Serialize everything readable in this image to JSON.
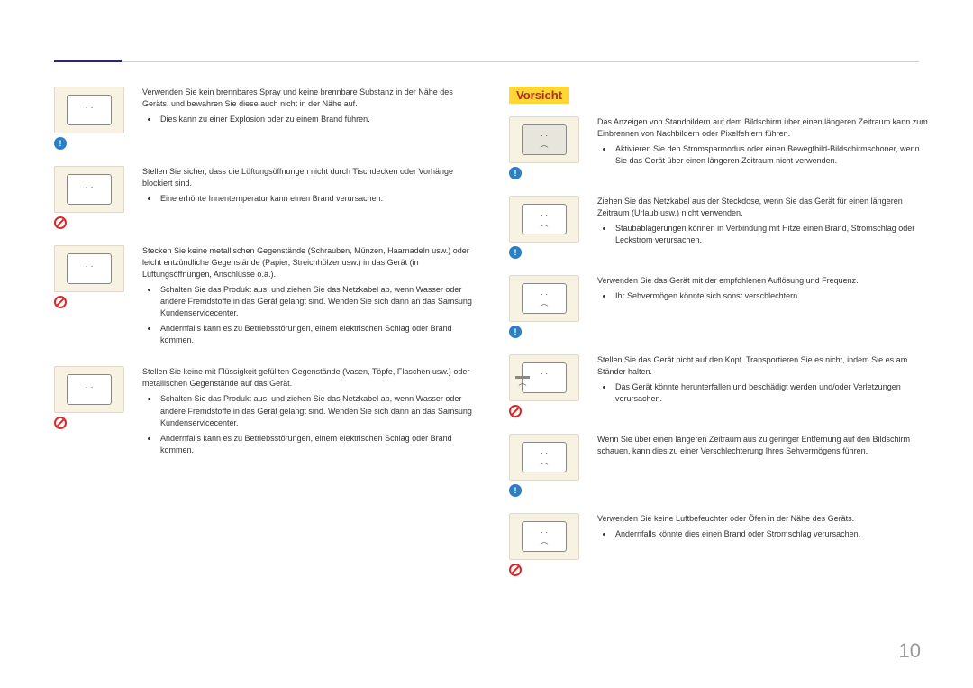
{
  "colors": {
    "header_accent": "#2a2a60",
    "header_rule": "#d0d0d0",
    "icon_bg": "#f8f2e2",
    "icon_border": "#e0d9c8",
    "caution_bg": "#ffd633",
    "caution_fg": "#b02a2a",
    "info_badge": "#2a7fc5",
    "prohibit_badge": "#d92828",
    "text": "#333333",
    "page_num": "#999999"
  },
  "left": {
    "items": [
      {
        "icon": "spray",
        "badge": "info",
        "lead": "Verwenden Sie kein brennbares Spray und keine brennbare Substanz in der Nähe des Geräts, und bewahren Sie diese auch nicht in der Nähe auf.",
        "bullets": [
          "Dies kann zu einer Explosion oder zu einem Brand führen."
        ]
      },
      {
        "icon": "cloth",
        "badge": "no",
        "lead": "Stellen Sie sicher, dass die Lüftungsöffnungen nicht durch Tischdecken oder Vorhänge blockiert sind.",
        "bullets": [
          "Eine erhöhte Innentemperatur kann einen Brand verursachen."
        ]
      },
      {
        "icon": "metal",
        "badge": "no",
        "lead": "Stecken Sie keine metallischen Gegenstände (Schrauben, Münzen, Haarnadeln usw.) oder leicht entzündliche Gegenstände (Papier, Streichhölzer usw.) in das Gerät (in Lüftungsöffnungen, Anschlüsse o.ä.).",
        "bullets": [
          "Schalten Sie das Produkt aus, und ziehen Sie das Netzkabel ab, wenn Wasser oder andere Fremdstoffe in das Gerät gelangt sind. Wenden Sie sich dann an das Samsung Kundenservicecenter.",
          "Andernfalls kann es zu Betriebsstörungen, einem elektrischen Schlag oder Brand kommen."
        ]
      },
      {
        "icon": "vase",
        "badge": "no",
        "lead": "Stellen Sie keine mit Flüssigkeit gefüllten Gegenstände (Vasen, Töpfe, Flaschen usw.) oder metallischen Gegenstände auf das Gerät.",
        "bullets": [
          "Schalten Sie das Produkt aus, und ziehen Sie das Netzkabel ab, wenn Wasser oder andere Fremdstoffe in das Gerät gelangt sind. Wenden Sie sich dann an das Samsung Kundenservicecenter.",
          "Andernfalls kann es zu Betriebsstörungen, einem elektrischen Schlag oder Brand kommen."
        ]
      }
    ]
  },
  "right": {
    "caution": "Vorsicht",
    "items": [
      {
        "icon": "burnin",
        "badge": "info",
        "lead": "Das Anzeigen von Standbildern auf dem Bildschirm über einen längeren Zeitraum kann zum Einbrennen von Nachbildern oder Pixelfehlern führen.",
        "bullets": [
          "Aktivieren Sie den Stromsparmodus oder einen Bewegtbild-Bildschirmschoner, wenn Sie das Gerät über einen längeren Zeitraum nicht verwenden."
        ]
      },
      {
        "icon": "sleep",
        "badge": "info",
        "lead": "Ziehen Sie das Netzkabel aus der Steckdose, wenn Sie das Gerät für einen längeren Zeitraum (Urlaub usw.) nicht verwenden.",
        "bullets": [
          "Staubablagerungen können in Verbindung mit Hitze einen Brand, Stromschlag oder Leckstrom verursachen."
        ]
      },
      {
        "icon": "resolution",
        "badge": "info",
        "lead": "Verwenden Sie das Gerät mit der empfohlenen Auflösung und Frequenz.",
        "bullets": [
          "Ihr Sehvermögen könnte sich sonst verschlechtern."
        ]
      },
      {
        "icon": "upside",
        "badge": "no",
        "lead": "Stellen Sie das Gerät nicht auf den Kopf. Transportieren Sie es nicht, indem Sie es am Ständer halten.",
        "bullets": [
          "Das Gerät könnte herunterfallen und beschädigt werden und/oder Verletzungen verursachen."
        ]
      },
      {
        "icon": "eyes",
        "badge": "info",
        "lead": "Wenn Sie über einen längeren Zeitraum aus zu geringer Entfernung auf den Bildschirm schauen, kann dies zu einer Verschlechterung Ihres Sehvermögens führen.",
        "bullets": []
      },
      {
        "icon": "humidifier",
        "badge": "no",
        "lead": "Verwenden Sie keine Luftbefeuchter oder Öfen in der Nähe des Geräts.",
        "bullets": [
          "Andernfalls könnte dies einen Brand oder Stromschlag verursachen."
        ]
      }
    ]
  },
  "page_number": "10"
}
